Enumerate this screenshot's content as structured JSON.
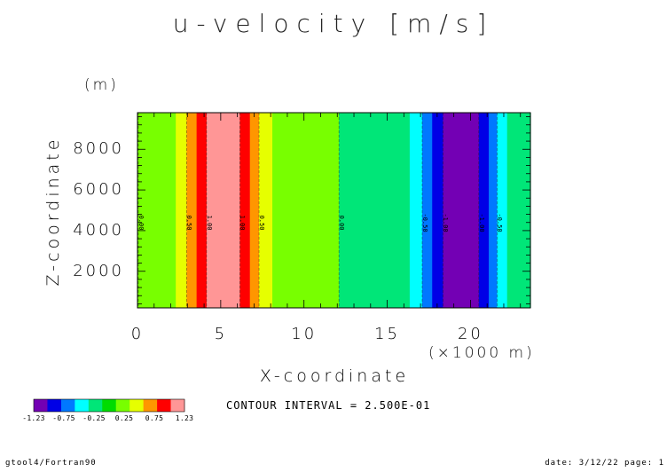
{
  "chart_data": {
    "type": "heatmap",
    "title": "u-velocity [m/s]",
    "xlabel": "X-coordinate",
    "ylabel": "Z-coordinate",
    "x_unit": "(×1000 m)",
    "y_unit": "(m)",
    "xlim": [
      0,
      23.6
    ],
    "ylim": [
      200,
      9800
    ],
    "xticks": [
      "0",
      "5",
      "10",
      "15",
      "20"
    ],
    "yticks": [
      "2000",
      "4000",
      "6000",
      "8000"
    ],
    "colors": [
      "#7300b4",
      "#0000e6",
      "#0078ff",
      "#00ffff",
      "#00e678",
      "#00dc00",
      "#78ff00",
      "#e6ff00",
      "#ff9600",
      "#ff0000",
      "#ff9696"
    ],
    "bands": [
      {
        "x0": 0.0,
        "x1": 2.3,
        "color": "#78ff00"
      },
      {
        "x0": 2.3,
        "x1": 2.95,
        "color": "#e6ff00"
      },
      {
        "x0": 2.95,
        "x1": 3.55,
        "color": "#ff9600"
      },
      {
        "x0": 3.55,
        "x1": 4.15,
        "color": "#ff0000"
      },
      {
        "x0": 4.15,
        "x1": 6.15,
        "color": "#ff9696"
      },
      {
        "x0": 6.15,
        "x1": 6.75,
        "color": "#ff0000"
      },
      {
        "x0": 6.75,
        "x1": 7.3,
        "color": "#ff9600"
      },
      {
        "x0": 7.3,
        "x1": 8.1,
        "color": "#e6ff00"
      },
      {
        "x0": 8.1,
        "x1": 12.1,
        "color": "#78ff00"
      },
      {
        "x0": 12.1,
        "x1": 16.35,
        "color": "#00e678"
      },
      {
        "x0": 16.35,
        "x1": 17.1,
        "color": "#00ffff"
      },
      {
        "x0": 17.1,
        "x1": 17.7,
        "color": "#0078ff"
      },
      {
        "x0": 17.7,
        "x1": 18.35,
        "color": "#0000e6"
      },
      {
        "x0": 18.35,
        "x1": 20.5,
        "color": "#7300b4"
      },
      {
        "x0": 20.5,
        "x1": 21.1,
        "color": "#0000e6"
      },
      {
        "x0": 21.1,
        "x1": 21.6,
        "color": "#0078ff"
      },
      {
        "x0": 21.6,
        "x1": 22.2,
        "color": "#00ffff"
      },
      {
        "x0": 22.2,
        "x1": 23.6,
        "color": "#00e678"
      }
    ],
    "contours": [
      {
        "x": 0.05,
        "label": "0.00"
      },
      {
        "x": 2.95,
        "label": "0.50"
      },
      {
        "x": 4.15,
        "label": "1.00"
      },
      {
        "x": 6.15,
        "label": "1.00"
      },
      {
        "x": 7.3,
        "label": "0.50"
      },
      {
        "x": 12.1,
        "label": "0.00"
      },
      {
        "x": 17.1,
        "label": "-0.50"
      },
      {
        "x": 18.35,
        "label": "-1.00"
      },
      {
        "x": 20.5,
        "label": "-1.00"
      },
      {
        "x": 21.6,
        "label": "-0.50"
      }
    ],
    "contour_label_z": 4400,
    "colorbar_labels": [
      "-1.23",
      "-0.75",
      "-0.25",
      "0.25",
      "0.75",
      "1.23"
    ]
  },
  "contour_interval": "CONTOUR INTERVAL = 2.500E-01",
  "footer": {
    "left": "gtool4/Fortran90",
    "right": "date: 3/12/22 page: 1"
  }
}
